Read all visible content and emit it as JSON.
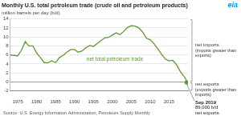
{
  "chart_data": {
    "type": "line",
    "title": "Monthly U.S. total petroleum trade (crude oil and petroleum products)",
    "subtitle": "million barrels per day (b/d)",
    "source": "Source: U.S. Energy Information Administration, Petroleum Supply Monthly",
    "logo": "eia",
    "x": [
      1973,
      1974,
      1975,
      1976,
      1977,
      1977.5,
      1978,
      1979,
      1980,
      1981,
      1982,
      1983,
      1984,
      1985,
      1986,
      1987,
      1988,
      1989,
      1990,
      1991,
      1992,
      1993,
      1994,
      1995,
      1996,
      1997,
      1998,
      1999,
      2000,
      2001,
      2002,
      2003,
      2004,
      2005,
      2006,
      2007,
      2008,
      2009,
      2010,
      2011,
      2012,
      2013,
      2014,
      2015,
      2016,
      2017,
      2018,
      2019,
      2019.5,
      2019.667
    ],
    "series": [
      {
        "name": "net total petroleum trade",
        "color": "#5d9732",
        "values": [
          6.0,
          5.9,
          5.8,
          7.1,
          9.0,
          8.4,
          8.0,
          8.0,
          6.4,
          5.4,
          4.3,
          4.3,
          4.7,
          4.3,
          5.4,
          5.9,
          6.6,
          7.2,
          7.2,
          6.6,
          6.9,
          7.6,
          8.1,
          7.9,
          8.5,
          9.2,
          9.8,
          9.9,
          10.4,
          10.9,
          10.5,
          11.2,
          12.1,
          12.5,
          12.4,
          12.0,
          11.1,
          9.7,
          9.4,
          8.5,
          7.4,
          6.2,
          5.1,
          4.7,
          4.8,
          3.8,
          2.3,
          1.2,
          0.5,
          -0.089
        ]
      }
    ],
    "xlim": [
      1973,
      2020
    ],
    "xticks": [
      1975,
      1980,
      1985,
      1990,
      1995,
      2000,
      2005,
      2010,
      2015
    ],
    "ylim": [
      -2,
      14
    ],
    "yticks": [
      -2,
      0,
      2,
      4,
      6,
      8,
      10,
      12,
      14
    ],
    "grid": true,
    "legend": false,
    "annotations": {
      "net_imports": [
        "net imports",
        "(imports greater than exports)"
      ],
      "net_exports": [
        "net exports",
        "(exports greater than imports)"
      ],
      "last_point": [
        "Sep 2019",
        "89,000 b/d",
        "net exports"
      ]
    }
  }
}
